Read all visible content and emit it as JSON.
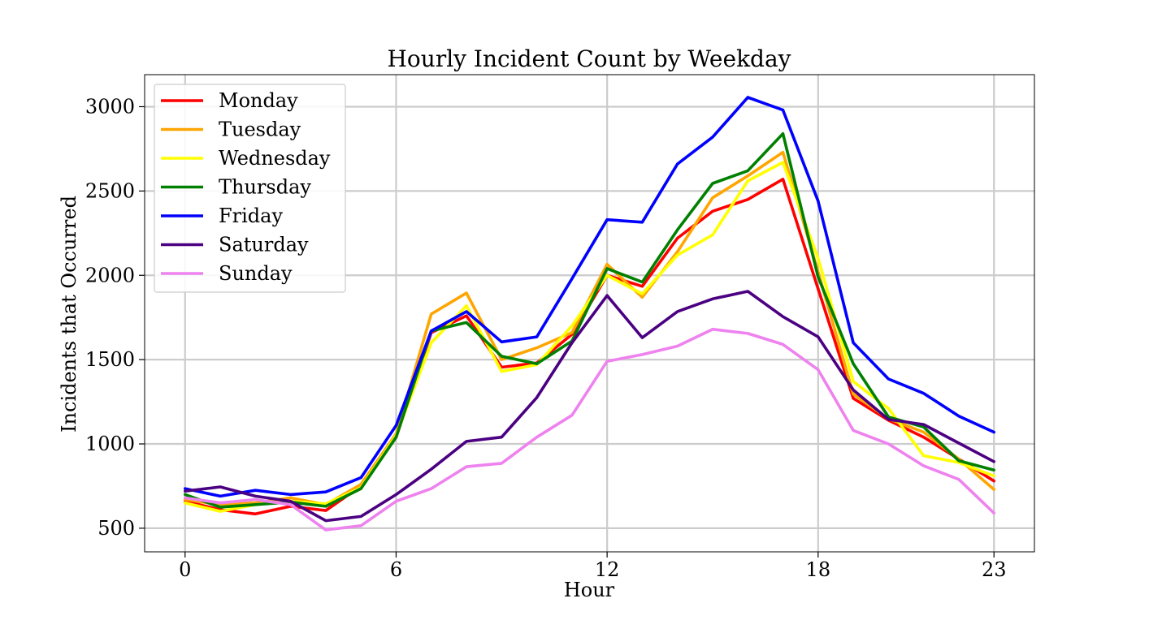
{
  "chart_data": {
    "type": "line",
    "title": "Hourly Incident Count by Weekday",
    "xlabel": "Hour",
    "ylabel": "Incidents that Occurred",
    "x": [
      0,
      1,
      2,
      3,
      4,
      5,
      6,
      7,
      8,
      9,
      10,
      11,
      12,
      13,
      14,
      15,
      16,
      17,
      18,
      19,
      20,
      21,
      22,
      23
    ],
    "xlim": [
      -1.15,
      24.15
    ],
    "ylim": [
      360,
      3190
    ],
    "xticks": [
      0,
      6,
      12,
      18,
      23
    ],
    "xtick_labels": [
      "0",
      "6",
      "12",
      "18",
      "23"
    ],
    "yticks": [
      500,
      1000,
      1500,
      2000,
      2500,
      3000
    ],
    "ytick_labels": [
      "500",
      "1000",
      "1500",
      "2000",
      "2500",
      "3000"
    ],
    "grid": true,
    "legend_position": "upper-left",
    "series": [
      {
        "name": "Monday",
        "color": "#ff0000",
        "values": [
          660,
          610,
          585,
          630,
          605,
          750,
          1040,
          1660,
          1760,
          1455,
          1480,
          1650,
          2000,
          1935,
          2220,
          2380,
          2450,
          2570,
          1920,
          1270,
          1140,
          1040,
          910,
          780
        ]
      },
      {
        "name": "Tuesday",
        "color": "#ffa500",
        "values": [
          670,
          640,
          650,
          680,
          640,
          760,
          1060,
          1770,
          1895,
          1500,
          1570,
          1660,
          2065,
          1870,
          2140,
          2460,
          2590,
          2730,
          2020,
          1295,
          1150,
          1070,
          910,
          730
        ]
      },
      {
        "name": "Wednesday",
        "color": "#ffff00",
        "values": [
          650,
          600,
          640,
          660,
          645,
          740,
          1050,
          1600,
          1820,
          1430,
          1470,
          1700,
          2000,
          1890,
          2120,
          2240,
          2560,
          2670,
          2100,
          1370,
          1210,
          930,
          890,
          810
        ]
      },
      {
        "name": "Thursday",
        "color": "#008000",
        "values": [
          700,
          625,
          640,
          655,
          630,
          735,
          1040,
          1670,
          1720,
          1520,
          1475,
          1610,
          2040,
          1960,
          2270,
          2545,
          2620,
          2840,
          1990,
          1475,
          1160,
          1100,
          900,
          845
        ]
      },
      {
        "name": "Friday",
        "color": "#0000ff",
        "values": [
          735,
          690,
          725,
          700,
          715,
          800,
          1110,
          1670,
          1785,
          1605,
          1635,
          1980,
          2330,
          2315,
          2660,
          2820,
          3055,
          2980,
          2440,
          1600,
          1385,
          1300,
          1165,
          1070
        ]
      },
      {
        "name": "Saturday",
        "color": "#4b0082",
        "values": [
          720,
          745,
          690,
          660,
          545,
          570,
          700,
          850,
          1015,
          1040,
          1275,
          1600,
          1880,
          1630,
          1785,
          1860,
          1905,
          1755,
          1635,
          1320,
          1145,
          1115,
          1005,
          895
        ]
      },
      {
        "name": "Sunday",
        "color": "#ee82ee",
        "values": [
          680,
          650,
          670,
          640,
          490,
          515,
          660,
          735,
          865,
          885,
          1040,
          1170,
          1490,
          1530,
          1580,
          1680,
          1655,
          1590,
          1440,
          1080,
          1000,
          870,
          790,
          590
        ]
      }
    ]
  }
}
